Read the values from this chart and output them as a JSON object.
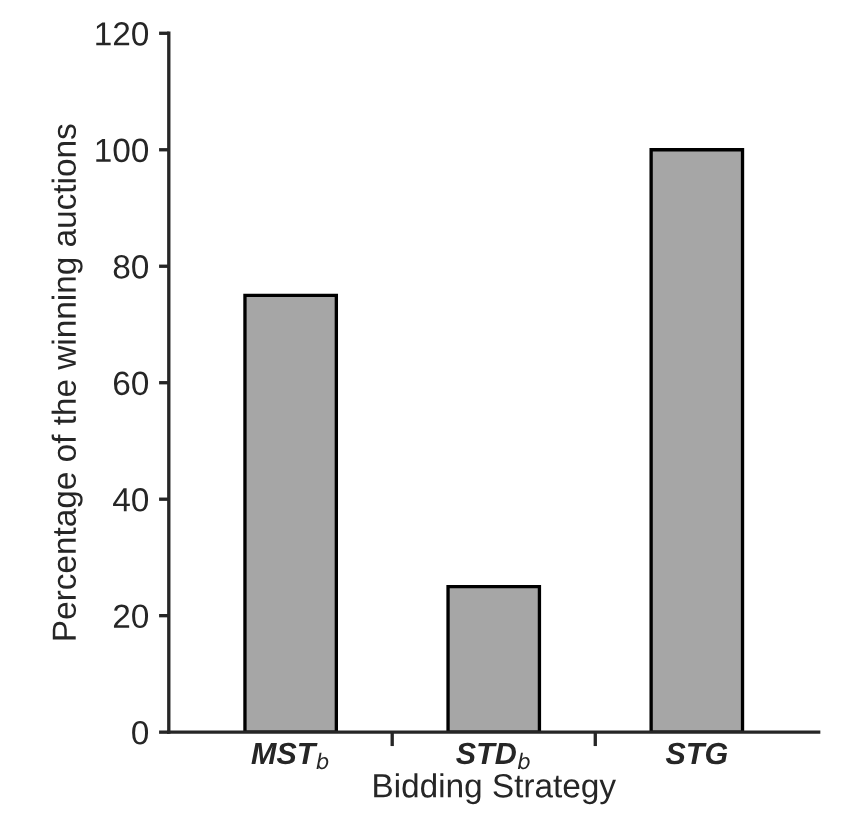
{
  "chart_data": {
    "type": "bar",
    "xlabel": "Bidding Strategy",
    "ylabel": "Percentage of the winning auctions",
    "categories": [
      "MST$_{b}$",
      "STD$_{b}$",
      "STG"
    ],
    "values": [
      75,
      25,
      100
    ],
    "color": "#a6a6a6",
    "ylim": [
      0,
      120
    ],
    "yticks": [
      0,
      20,
      40,
      60,
      80,
      100,
      120
    ],
    "grid": false
  }
}
